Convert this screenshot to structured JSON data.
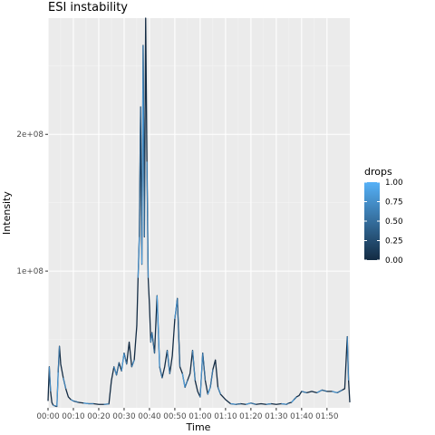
{
  "chart_data": {
    "type": "line",
    "title": "ESI instability",
    "xlabel": "Time",
    "ylabel": "Intensity",
    "x_unit": "minutes (mm:ss)",
    "xlim": [
      0,
      119
    ],
    "ylim": [
      0,
      285000000
    ],
    "x_ticks": [
      {
        "value": 0,
        "label": "00:00"
      },
      {
        "value": 10,
        "label": "00:10"
      },
      {
        "value": 20,
        "label": "00:20"
      },
      {
        "value": 30,
        "label": "00:30"
      },
      {
        "value": 40,
        "label": "00:40"
      },
      {
        "value": 50,
        "label": "00:50"
      },
      {
        "value": 60,
        "label": "01:00"
      },
      {
        "value": 70,
        "label": "01:10"
      },
      {
        "value": 80,
        "label": "01:20"
      },
      {
        "value": 90,
        "label": "01:30"
      },
      {
        "value": 100,
        "label": "01:40"
      },
      {
        "value": 110,
        "label": "01:50"
      }
    ],
    "y_ticks": [
      {
        "value": 100000000,
        "label": "1e+08"
      },
      {
        "value": 200000000,
        "label": "2e+08"
      }
    ],
    "grid": true,
    "legend": {
      "title": "drops",
      "position": "right",
      "color_low": "#132B43",
      "color_high": "#56B1F7",
      "ticks": [
        {
          "value": 1.0,
          "label": "1.00"
        },
        {
          "value": 0.75,
          "label": "0.75"
        },
        {
          "value": 0.5,
          "label": "0.50"
        },
        {
          "value": 0.25,
          "label": "0.25"
        },
        {
          "value": 0.0,
          "label": "0.00"
        }
      ]
    },
    "series": [
      {
        "x": [
          0,
          0.5,
          1,
          1.5,
          2,
          2.5,
          3,
          3.5,
          4,
          4.5,
          5,
          6,
          7,
          8,
          9,
          10,
          12,
          14,
          16,
          18,
          20,
          22,
          24,
          25,
          26,
          27,
          28,
          29,
          30,
          31,
          32,
          33,
          34,
          35,
          35.5,
          36,
          36.5,
          37,
          37.5,
          38,
          38.5,
          39,
          39.5,
          40,
          40.5,
          41,
          42,
          43,
          44,
          45,
          46,
          47,
          48,
          49,
          50,
          51,
          52,
          53,
          54,
          55,
          56,
          57,
          58,
          59,
          60,
          61,
          62,
          63,
          64,
          65,
          66,
          67,
          68,
          70,
          72,
          74,
          76,
          78,
          80,
          82,
          84,
          86,
          88,
          90,
          92,
          94,
          95,
          96,
          97,
          98,
          99,
          100,
          102,
          104,
          106,
          108,
          110,
          112,
          114,
          116,
          117,
          118,
          118.5,
          119
        ],
        "y": [
          5000000,
          30000000,
          12000000,
          4000000,
          2000000,
          1500000,
          1200000,
          1000000,
          26000000,
          45000000,
          32000000,
          22000000,
          14000000,
          8000000,
          6000000,
          5000000,
          4000000,
          3500000,
          3000000,
          3000000,
          2500000,
          2500000,
          2800000,
          20000000,
          30000000,
          24000000,
          33000000,
          27000000,
          40000000,
          32000000,
          48000000,
          30000000,
          35000000,
          60000000,
          95000000,
          125000000,
          220000000,
          105000000,
          265000000,
          125000000,
          285000000,
          180000000,
          95000000,
          75000000,
          48000000,
          55000000,
          40000000,
          82000000,
          30000000,
          22000000,
          30000000,
          42000000,
          25000000,
          38000000,
          65000000,
          80000000,
          30000000,
          25000000,
          15000000,
          20000000,
          25000000,
          42000000,
          20000000,
          12000000,
          8000000,
          40000000,
          20000000,
          10000000,
          15000000,
          28000000,
          35000000,
          15000000,
          10000000,
          6000000,
          3000000,
          2500000,
          3000000,
          2500000,
          3500000,
          2500000,
          3000000,
          2500000,
          3000000,
          2500000,
          3000000,
          2500000,
          3500000,
          4000000,
          6000000,
          8000000,
          9000000,
          12000000,
          11000000,
          12000000,
          11000000,
          13000000,
          12000000,
          12000000,
          11000000,
          13000000,
          14000000,
          52000000,
          20000000,
          4000000
        ]
      }
    ]
  }
}
